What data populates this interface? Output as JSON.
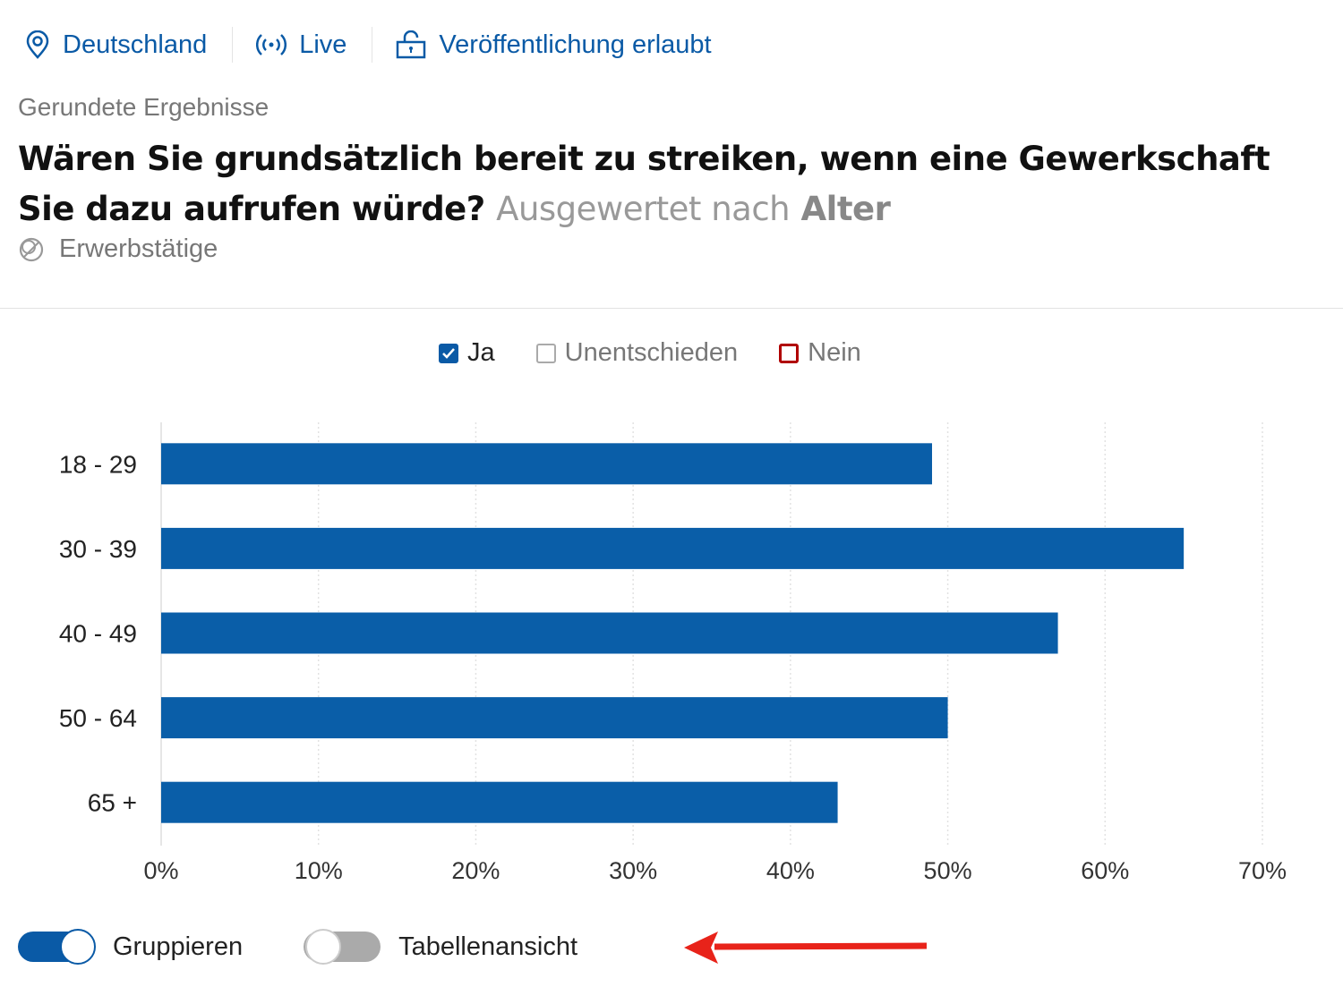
{
  "header": {
    "items": [
      {
        "label": "Deutschland",
        "icon": "location-pin-icon"
      },
      {
        "label": "Live",
        "icon": "broadcast-icon"
      },
      {
        "label": "Veröffentlichung erlaubt",
        "icon": "unlock-icon"
      }
    ],
    "subtitle": "Gerundete Ergebnisse",
    "question": "Wären Sie grundsätzlich bereit zu streiken, wenn eine Gewerkschaft Sie dazu aufrufen würde?",
    "evaluated_prefix": "Ausgewertet nach",
    "evaluated_by": "Alter",
    "population": "Erwerbstätige"
  },
  "legend": [
    {
      "label": "Ja",
      "checked": true,
      "color": "#0a5aa6"
    },
    {
      "label": "Unentschieden",
      "checked": false,
      "color": "#aaaaaa"
    },
    {
      "label": "Nein",
      "checked": false,
      "color": "#b00000"
    }
  ],
  "chart_data": {
    "type": "bar",
    "orientation": "horizontal",
    "categories": [
      "18 - 29",
      "30 - 39",
      "40 - 49",
      "50 - 64",
      "65 +"
    ],
    "series": [
      {
        "name": "Ja",
        "values": [
          49,
          65,
          57,
          50,
          43
        ],
        "color": "#0a5ea8"
      }
    ],
    "xlim": [
      0,
      70
    ],
    "xticks": [
      "0%",
      "10%",
      "20%",
      "30%",
      "40%",
      "50%",
      "60%",
      "70%"
    ],
    "grid": true
  },
  "controls": {
    "group_label": "Gruppieren",
    "group_on": true,
    "table_label": "Tabellenansicht",
    "table_on": false
  },
  "annotation": {
    "arrow_color": "#e8231a"
  }
}
